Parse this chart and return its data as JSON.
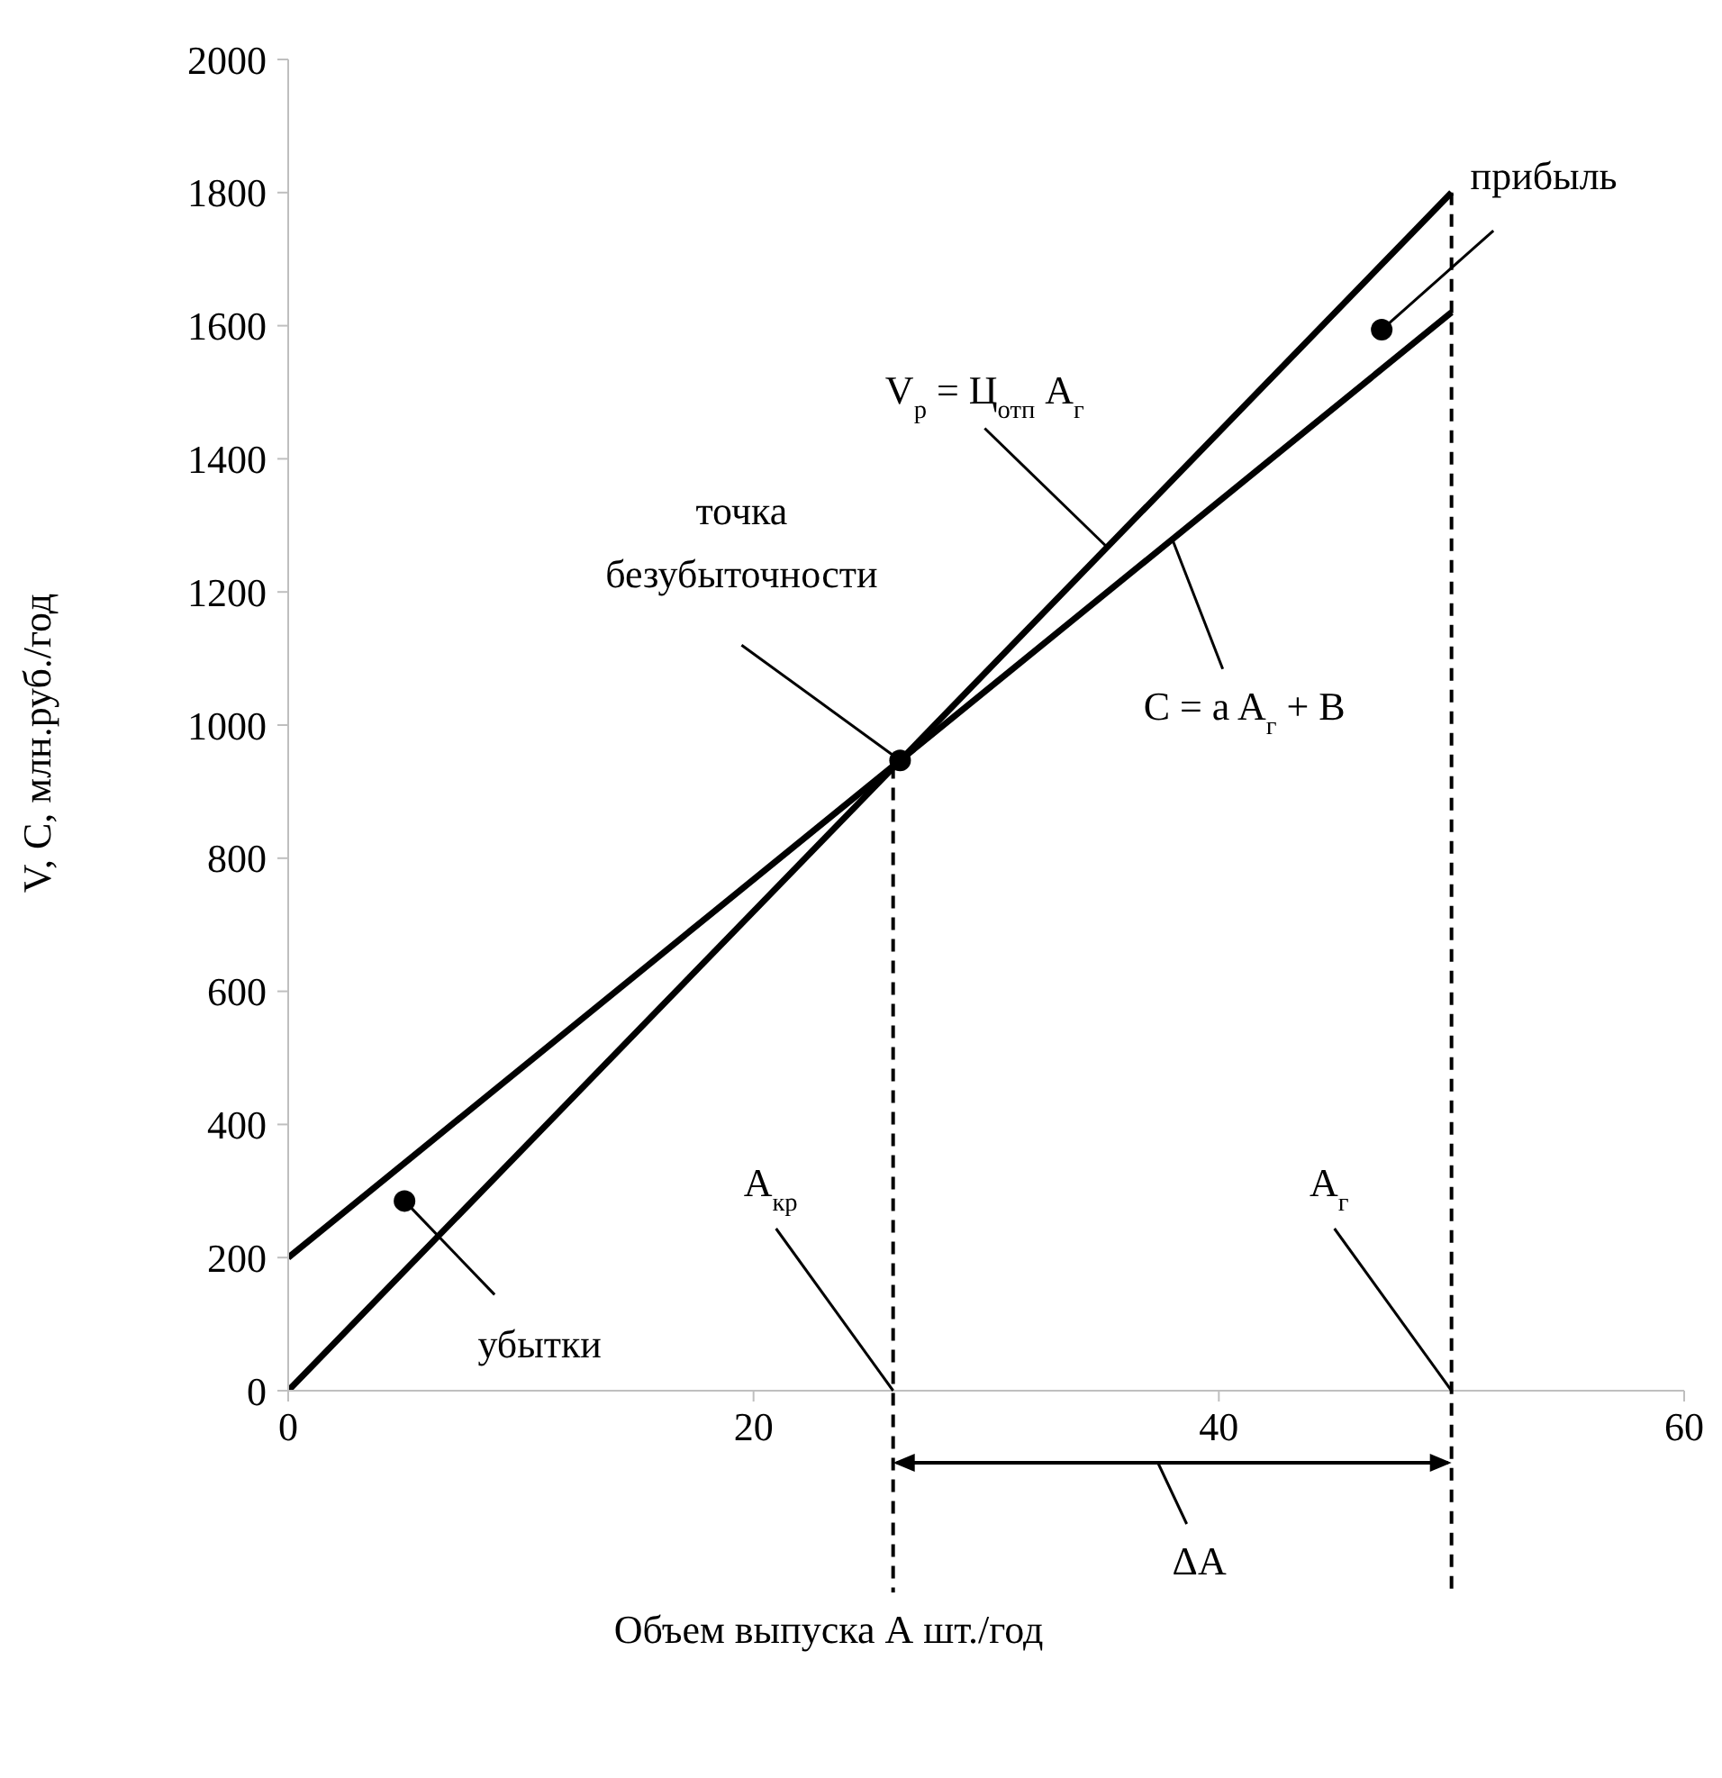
{
  "chart_data": {
    "type": "line",
    "xlabel": "Объем выпуска А шт./год",
    "ylabel": "V, C, млн.руб./год",
    "series": [
      {
        "name": "V$_{р}$ = Ц$_{отп}$ A$_{г}$",
        "color": "#000000",
        "values": [
          0,
          1800
        ]
      },
      {
        "name": "C = a A$_{г}$ + B",
        "color": "#000000",
        "values": [
          200,
          1620
        ]
      }
    ],
    "x": [
      0,
      50
    ],
    "xlim": [
      0,
      60
    ],
    "xticks": [
      0,
      20,
      40,
      60
    ],
    "ylim": [
      0,
      2000
    ],
    "yticks": [
      0,
      200,
      400,
      600,
      800,
      1000,
      1200,
      1400,
      1600,
      1800,
      2000
    ],
    "grid": false,
    "legend": false,
    "marker": "none",
    "line_style": "solid",
    "ref_lines": [
      {
        "axis": "x",
        "value": 26,
        "label": "A$_{кр}$",
        "line_style": "dashed",
        "color": "#000000"
      },
      {
        "axis": "x",
        "value": 50,
        "label": "A$_{г}$",
        "line_style": "dashed",
        "color": "#000000"
      }
    ],
    "annotations": [
      {
        "text": "точка безубыточности",
        "x": 26.3,
        "y": 947
      },
      {
        "text": "прибыль",
        "x": 47,
        "y": 1594
      },
      {
        "text": "убытки",
        "x": 5,
        "y": 285
      },
      "ΔA"
    ]
  }
}
